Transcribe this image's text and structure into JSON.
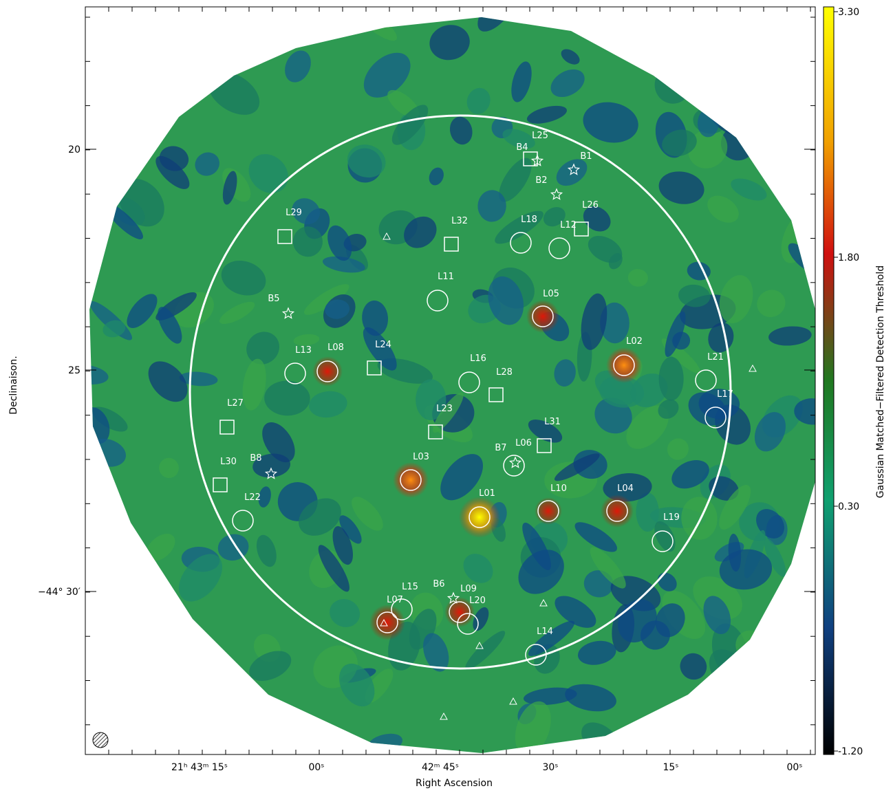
{
  "axes": {
    "x_label": "Right Ascension",
    "y_label": "Declinaison.",
    "x_ticks": [
      "21ʰ 43ᵐ 15ˢ",
      "00ˢ",
      "42ᵐ 45ˢ",
      "30ˢ",
      "15ˢ",
      "00ˢ"
    ],
    "y_ticks": [
      "20",
      "25",
      "−44° 30′"
    ]
  },
  "colorbar": {
    "label": "Gaussian Matched−Filtered Detection Threshold",
    "ticks": [
      "3.30",
      "1.80",
      "0.30",
      "-1.20"
    ]
  },
  "sources": [
    {
      "label": "L01",
      "shape": "circle"
    },
    {
      "label": "L02",
      "shape": "circle"
    },
    {
      "label": "L03",
      "shape": "circle"
    },
    {
      "label": "L04",
      "shape": "circle"
    },
    {
      "label": "L05",
      "shape": "circle"
    },
    {
      "label": "L06",
      "shape": "circle"
    },
    {
      "label": "L07",
      "shape": "circle"
    },
    {
      "label": "L08",
      "shape": "circle"
    },
    {
      "label": "L09",
      "shape": "circle"
    },
    {
      "label": "L10",
      "shape": "circle"
    },
    {
      "label": "L11",
      "shape": "circle"
    },
    {
      "label": "L12",
      "shape": "circle"
    },
    {
      "label": "L13",
      "shape": "circle"
    },
    {
      "label": "L14",
      "shape": "circle"
    },
    {
      "label": "L15",
      "shape": "circle"
    },
    {
      "label": "L16",
      "shape": "circle"
    },
    {
      "label": "L17",
      "shape": "circle"
    },
    {
      "label": "L18",
      "shape": "circle"
    },
    {
      "label": "L19",
      "shape": "circle"
    },
    {
      "label": "L20",
      "shape": "circle"
    },
    {
      "label": "L21",
      "shape": "circle"
    },
    {
      "label": "L22",
      "shape": "circle"
    },
    {
      "label": "L23",
      "shape": "square"
    },
    {
      "label": "L24",
      "shape": "square"
    },
    {
      "label": "L25",
      "shape": "square"
    },
    {
      "label": "L26",
      "shape": "square"
    },
    {
      "label": "L27",
      "shape": "square"
    },
    {
      "label": "L28",
      "shape": "square"
    },
    {
      "label": "L29",
      "shape": "square"
    },
    {
      "label": "L30",
      "shape": "square"
    },
    {
      "label": "L31",
      "shape": "square"
    },
    {
      "label": "L32",
      "shape": "square"
    },
    {
      "label": "B1",
      "shape": "star"
    },
    {
      "label": "B2",
      "shape": "star"
    },
    {
      "label": "B4",
      "shape": "star"
    },
    {
      "label": "B5",
      "shape": "star"
    },
    {
      "label": "B6",
      "shape": "star"
    },
    {
      "label": "B7",
      "shape": "star"
    },
    {
      "label": "B8",
      "shape": "star"
    }
  ]
}
